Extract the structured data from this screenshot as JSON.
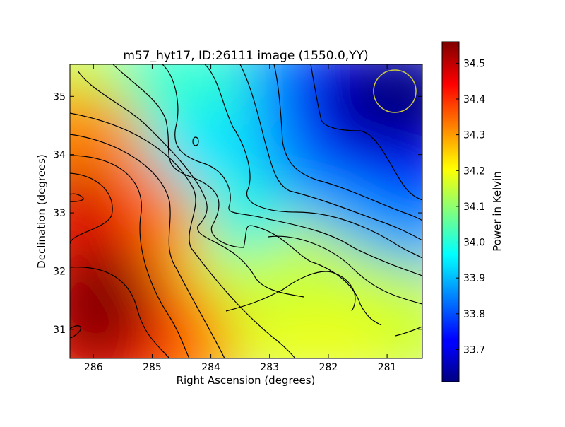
{
  "chart_data": {
    "type": "heatmap",
    "title": "m57_hyt17, ID:26111 image (1550.0,YY)",
    "xlabel": "Right Ascension (degrees)",
    "ylabel": "Declination (degrees)",
    "xlim": [
      286.4,
      280.4
    ],
    "ylim": [
      30.5,
      35.55
    ],
    "x_ticks": [
      286,
      285,
      284,
      283,
      282,
      281
    ],
    "y_ticks": [
      31,
      32,
      33,
      34,
      35
    ],
    "colorbar": {
      "label": "Power in Kelvin",
      "colormap": "jet",
      "range": [
        33.61,
        34.56
      ],
      "ticks": [
        33.7,
        33.8,
        33.9,
        34.0,
        34.1,
        34.2,
        34.3,
        34.4,
        34.5
      ]
    },
    "field_samples": [
      {
        "ra": 285.8,
        "dec": 31.3,
        "value": 34.55
      },
      {
        "ra": 286.2,
        "dec": 33.2,
        "value": 34.48
      },
      {
        "ra": 284.8,
        "dec": 32.5,
        "value": 34.3
      },
      {
        "ra": 283.2,
        "dec": 31.5,
        "value": 34.2
      },
      {
        "ra": 282.4,
        "dec": 30.7,
        "value": 34.25
      },
      {
        "ra": 284.5,
        "dec": 34.3,
        "value": 33.95
      },
      {
        "ra": 283.4,
        "dec": 32.8,
        "value": 33.95
      },
      {
        "ra": 281.8,
        "dec": 34.0,
        "value": 33.72
      },
      {
        "ra": 280.8,
        "dec": 35.1,
        "value": 33.62
      }
    ],
    "contours": "black",
    "beam_marker": {
      "ra": 280.85,
      "dec": 35.1,
      "color": "#c8c83c"
    }
  }
}
